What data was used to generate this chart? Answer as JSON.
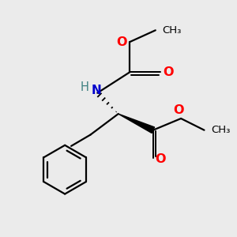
{
  "background_color": "#ebebeb",
  "bond_color": "#000000",
  "o_color": "#ff0000",
  "n_color": "#0000cc",
  "h_color": "#3d8080",
  "figsize": [
    3.0,
    3.0
  ],
  "dpi": 100,
  "xlim": [
    0,
    10
  ],
  "ylim": [
    0,
    10
  ],
  "lw": 1.6,
  "fs": 10.5
}
